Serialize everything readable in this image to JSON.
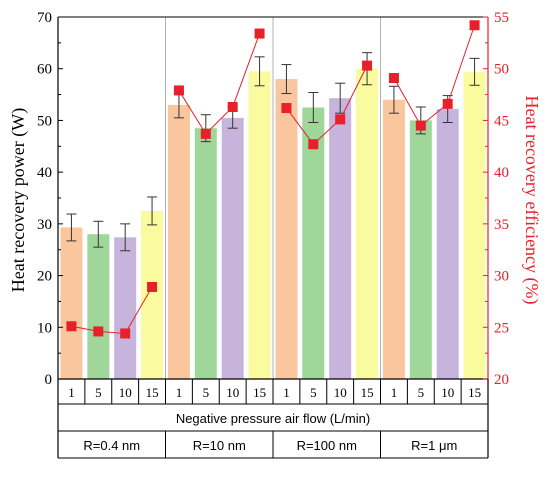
{
  "chart_data": {
    "type": "bar",
    "xlabel": "Negative pressure air flow (L/min)",
    "ylabel": "Heat recovery power (W)",
    "ylabel_right": "Heat recovery efficiency (%)",
    "ylim": [
      0,
      70
    ],
    "ylim_right": [
      20,
      55
    ],
    "yticks": [
      0,
      10,
      20,
      30,
      40,
      50,
      60,
      70
    ],
    "yticks_right": [
      20,
      25,
      30,
      35,
      40,
      45,
      50,
      55
    ],
    "groups": [
      "R=0.4 nm",
      "R=10 nm",
      "R=100 nm",
      "R=1 μm"
    ],
    "categories": [
      "1",
      "5",
      "10",
      "15",
      "1",
      "5",
      "10",
      "15",
      "1",
      "5",
      "10",
      "15",
      "1",
      "5",
      "10",
      "15"
    ],
    "bar_colors": [
      "#f9c69e",
      "#9fd69a",
      "#c6b4dc",
      "#fafa9e"
    ],
    "line_color": "#e8202a",
    "series": [
      {
        "values": [
          29.3,
          28.0,
          27.4,
          32.5,
          53.0,
          48.5,
          50.5,
          59.5,
          58.0,
          52.5,
          54.3,
          60.0,
          54.0,
          50.0,
          52.2,
          59.4
        ],
        "errors": [
          2.6,
          2.5,
          2.6,
          2.7,
          2.5,
          2.6,
          2.0,
          2.8,
          2.8,
          2.9,
          2.9,
          3.1,
          2.6,
          2.6,
          2.6,
          2.6
        ],
        "axis": "left"
      },
      {
        "values": [
          25.1,
          24.6,
          24.4,
          28.9,
          47.9,
          43.7,
          46.3,
          53.4,
          46.2,
          42.7,
          45.1,
          50.3,
          49.1,
          44.5,
          46.6,
          54.2
        ],
        "axis": "right"
      }
    ],
    "grid": false
  }
}
